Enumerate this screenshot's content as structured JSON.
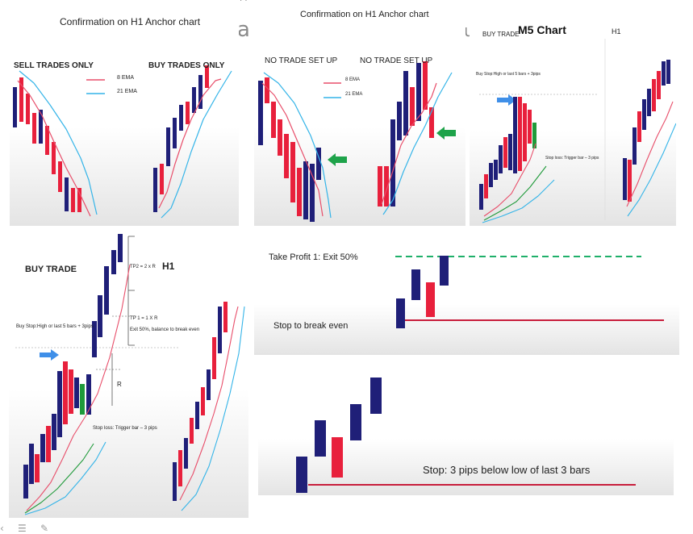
{
  "colors": {
    "up": "#1f1f78",
    "down": "#e8203c",
    "green": "#1f9a3a",
    "ema8": "#e84e6a",
    "ema21": "#34b4e8",
    "arrow_blue": "#3f8fe8",
    "arrow_green": "#1ea34a",
    "stop_line": "#c81e3c",
    "tp_line": "#1fb06a"
  },
  "panel1": {
    "title": "Confirmation on H1 Anchor chart",
    "sell_label": "SELL TRADES ONLY",
    "buy_label": "BUY TRADES ONLY",
    "legend_8": "8 EMA",
    "legend_21": "21 EMA"
  },
  "panel2": {
    "title": "Confirmation on H1 Anchor chart",
    "no_setup_1": "NO TRADE SET UP",
    "no_setup_2": "NO TRADE SET UP",
    "legend_8": "8 EMA",
    "legend_21": "21 EMA"
  },
  "fragments": {
    "a": "a",
    "u": "u"
  },
  "panel3": {
    "buy_trade": "BUY TRADE",
    "chart_title": "M5 Chart",
    "h1": "H1",
    "buy_stop": "Buy Stop:High or last 5 bars + 3pips",
    "stop_loss": "Stop loss: Trigger bar – 3 pips"
  },
  "panel4": {
    "buy_trade": "BUY TRADE",
    "h1": "H1",
    "tp2": "TP2 = 2 x R",
    "tp1": "TP 1 = 1 X R",
    "exit": "Exit 50%, balance to break even",
    "buy_stop": "Buy Stop:High or last 5 bars + 3pips",
    "r": "R",
    "stop_loss": "Stop loss: Trigger bar – 3 pips"
  },
  "panel5": {
    "take_profit": "Take Profit 1: Exit 50%",
    "break_even": "Stop to break even"
  },
  "panel6": {
    "stop": "Stop: 3 pips below low of last 3 bars"
  }
}
